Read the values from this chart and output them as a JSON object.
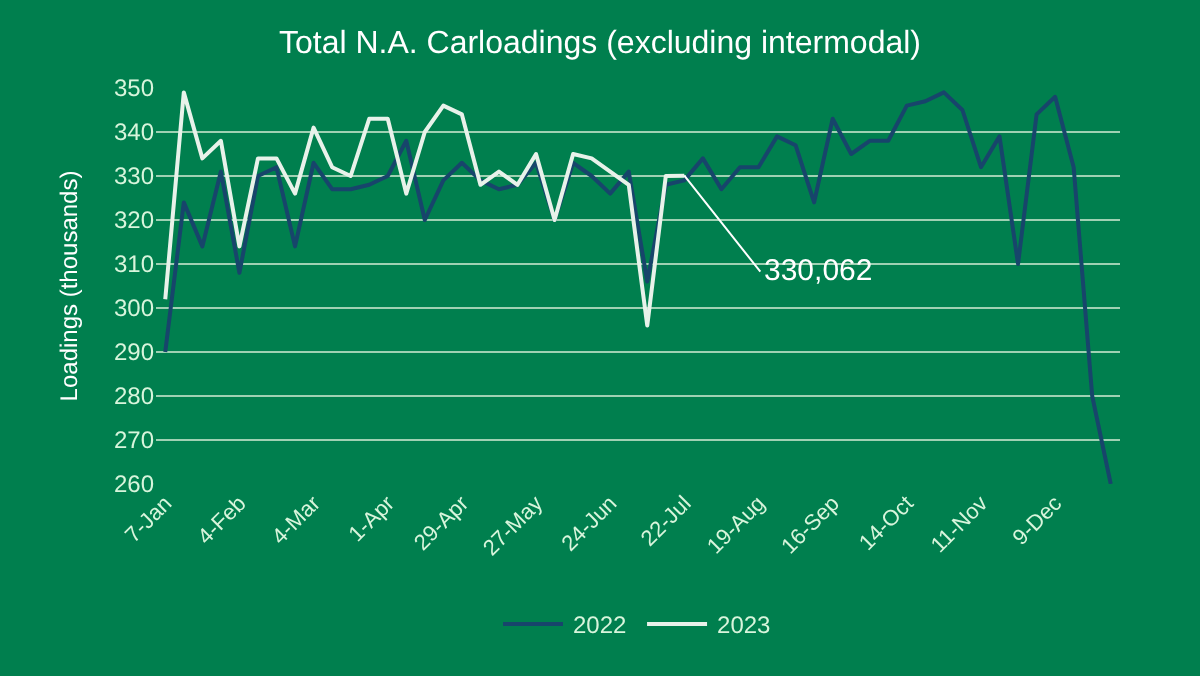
{
  "chart_data": {
    "type": "line",
    "title": "Total N.A. Carloadings (excluding intermodal)",
    "ylabel": "Loadings (thousands)",
    "categories": [
      "7-Jan",
      null,
      null,
      null,
      "4-Feb",
      null,
      null,
      null,
      "4-Mar",
      null,
      null,
      null,
      "1-Apr",
      null,
      null,
      null,
      "29-Apr",
      null,
      null,
      null,
      "27-May",
      null,
      null,
      null,
      "24-Jun",
      null,
      null,
      null,
      "22-Jul",
      null,
      null,
      null,
      "19-Aug",
      null,
      null,
      null,
      "16-Sep",
      null,
      null,
      null,
      "14-Oct",
      null,
      null,
      null,
      "11-Nov",
      null,
      null,
      null,
      "9-Dec",
      null,
      null,
      null
    ],
    "series": [
      {
        "name": "2022",
        "color": "#17456b",
        "values": [
          290,
          324,
          314,
          331,
          308,
          330,
          332,
          314,
          333,
          327,
          327,
          328,
          330,
          338,
          320,
          329,
          333,
          329,
          327,
          328,
          333,
          320,
          333,
          330,
          326,
          331,
          306,
          328,
          329,
          334,
          327,
          332,
          332,
          339,
          337,
          324,
          343,
          335,
          338,
          338,
          346,
          347,
          349,
          345,
          332,
          339,
          310,
          344,
          348,
          332,
          280,
          260
        ]
      },
      {
        "name": "2023",
        "color": "#e8f2ea",
        "values": [
          302,
          349,
          334,
          338,
          314,
          334,
          334,
          326,
          341,
          332,
          330,
          343,
          343,
          326,
          340,
          346,
          344,
          328,
          331,
          328,
          335,
          320,
          335,
          334,
          331,
          328,
          296,
          330,
          330.062,
          null,
          null,
          null,
          null,
          null,
          null,
          null,
          null,
          null,
          null,
          null,
          null,
          null,
          null,
          null,
          null,
          null,
          null,
          null,
          null,
          null,
          null,
          null
        ]
      }
    ],
    "annotations": [
      {
        "text": "330,062",
        "y": 330.062
      }
    ],
    "ylim": [
      260,
      350
    ],
    "yticks": [
      260,
      270,
      280,
      290,
      300,
      310,
      320,
      330,
      340,
      350
    ],
    "grid": "y",
    "legend": "bottom",
    "marker": "none",
    "line_style": "solid"
  }
}
